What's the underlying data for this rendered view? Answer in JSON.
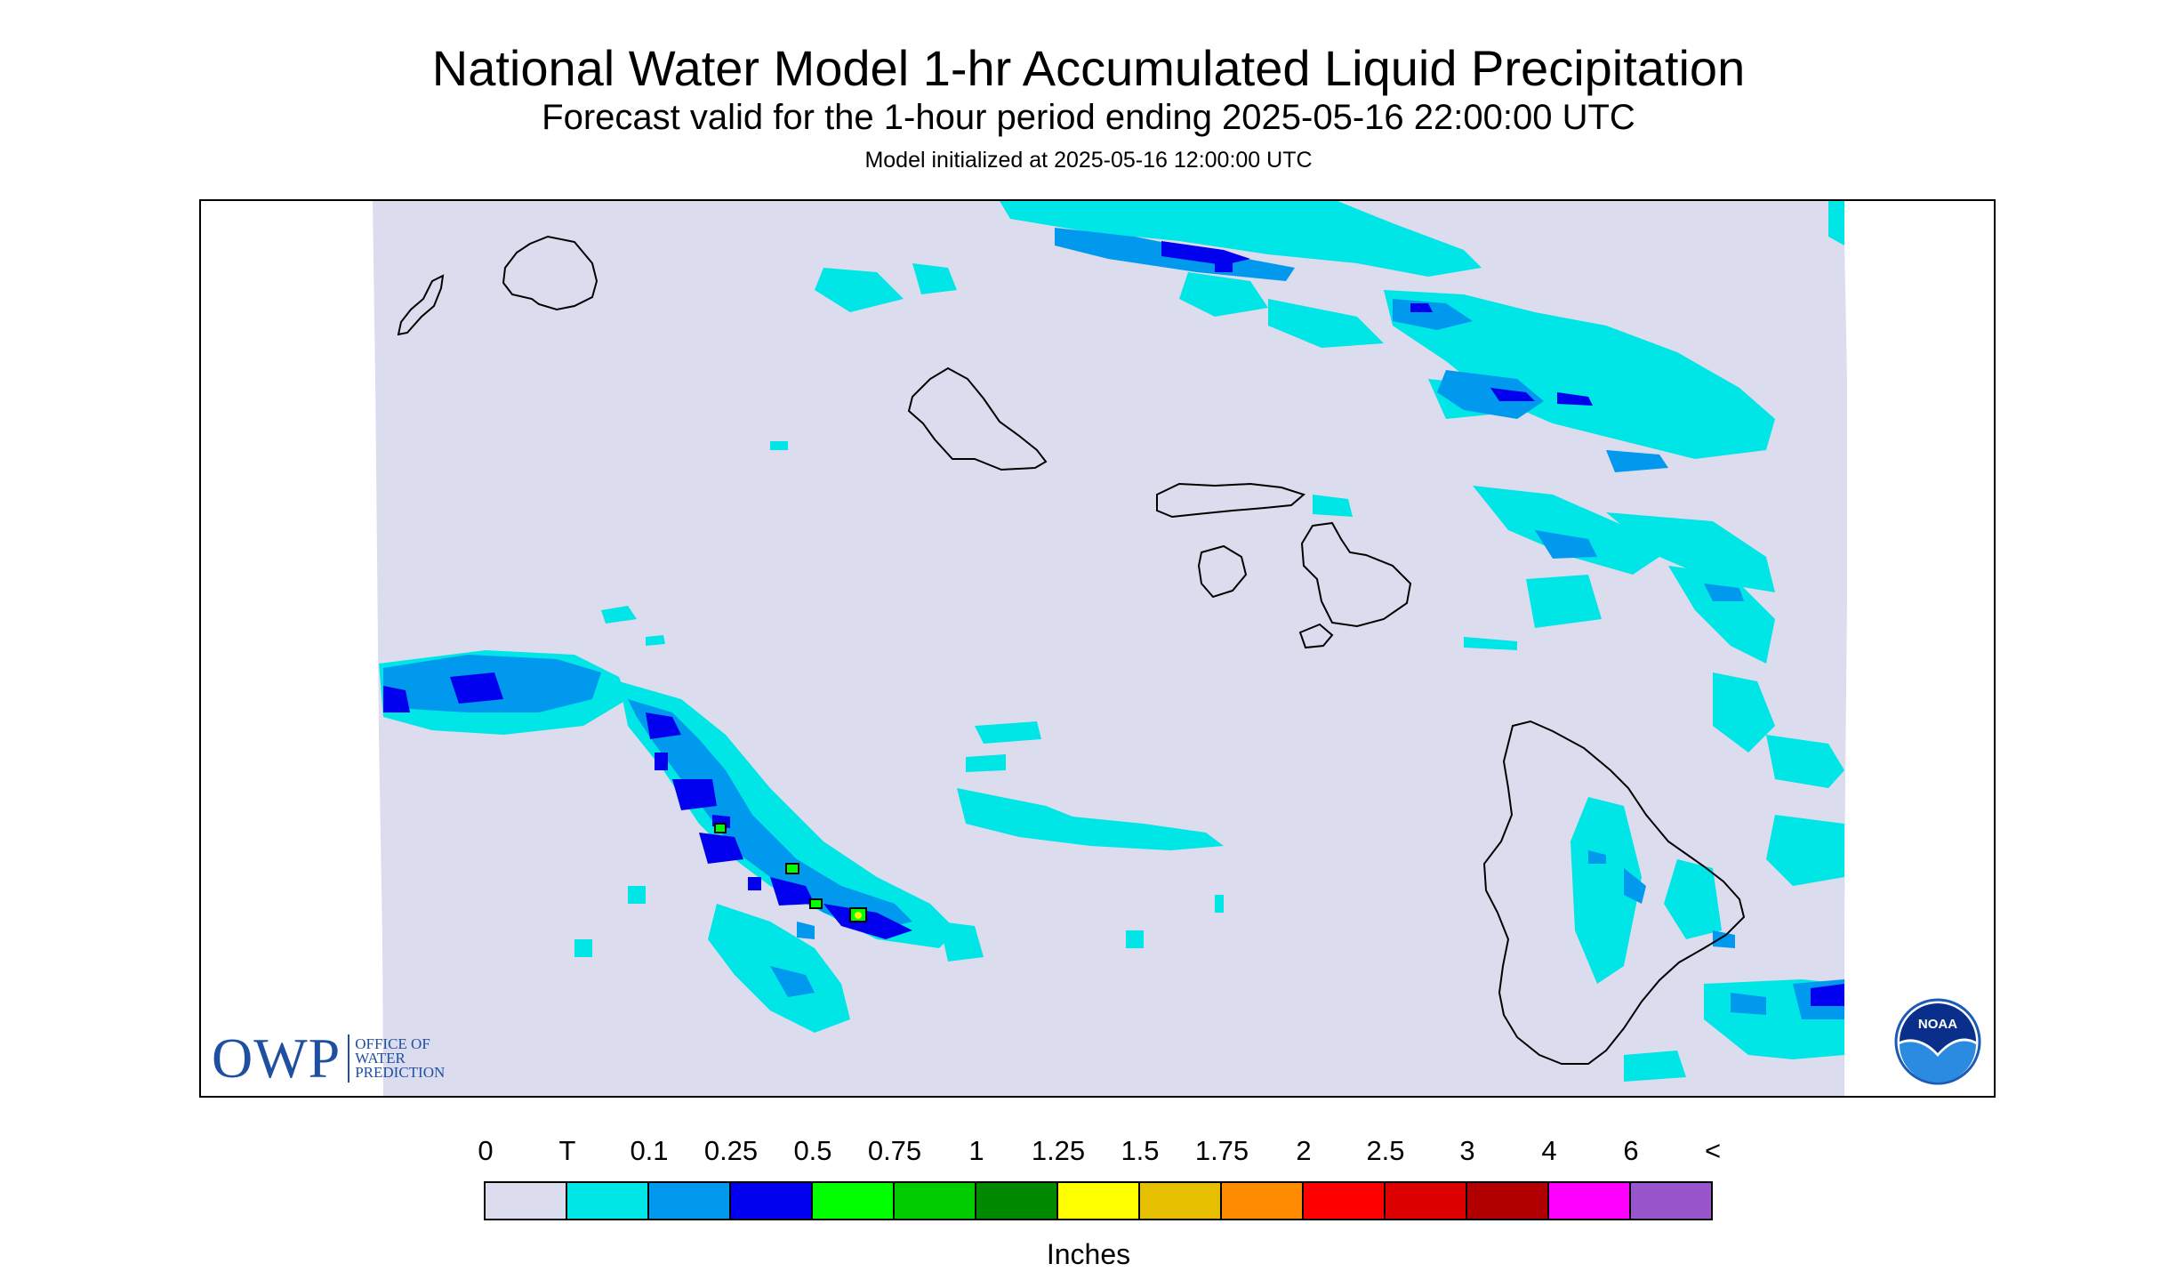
{
  "header": {
    "title": "National Water Model 1-hr Accumulated Liquid Precipitation",
    "subtitle": "Forecast valid for the 1-hour period ending 2025-05-16 22:00:00 UTC",
    "init": "Model initialized at 2025-05-16 12:00:00 UTC"
  },
  "map": {
    "region": "Hawaiian Islands",
    "background_no_precip_color": "#dcdcef",
    "coastline_color": "#000000"
  },
  "logos": {
    "owp": {
      "letters": "OWP",
      "line1": "OFFICE OF",
      "line2": "WATER",
      "line3": "PREDICTION"
    },
    "noaa": {
      "text": "NOAA"
    }
  },
  "legend": {
    "labels": [
      "0",
      "T",
      "0.1",
      "0.25",
      "0.5",
      "0.75",
      "1",
      "1.25",
      "1.5",
      "1.75",
      "2",
      "2.5",
      "3",
      "4",
      "6",
      "<"
    ],
    "colors": [
      "#dcdcef",
      "#00e5e5",
      "#0099ee",
      "#0000ee",
      "#00ff00",
      "#00cc00",
      "#008800",
      "#ffff00",
      "#e5bf00",
      "#ff8c00",
      "#ff0000",
      "#dd0000",
      "#b20000",
      "#ff00ff",
      "#9955cc"
    ],
    "units": "Inches"
  }
}
